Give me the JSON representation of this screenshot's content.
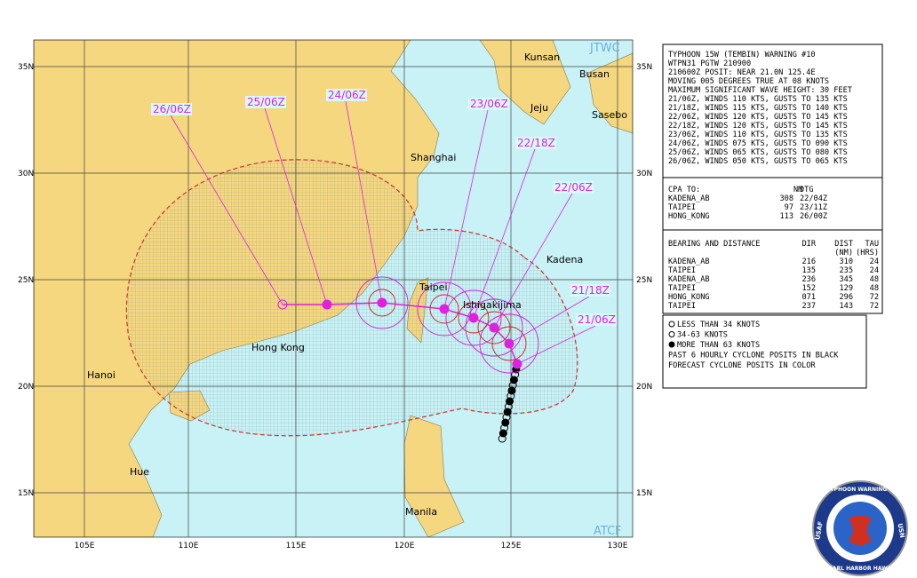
{
  "map": {
    "places": [
      "Kunsan",
      "Busan",
      "Jeju",
      "Sasebo",
      "Shanghai",
      "Kadena",
      "Taipei",
      "Ishigakijima",
      "Hong Kong",
      "Hanoi",
      "Hue",
      "Manila"
    ],
    "lat_ticks": [
      "35N",
      "30N",
      "25N",
      "20N",
      "15N"
    ],
    "lon_ticks": [
      "105E",
      "110E",
      "115E",
      "120E",
      "125E",
      "130E"
    ],
    "track_labels": [
      "21/06Z",
      "21/18Z",
      "22/06Z",
      "22/18Z",
      "23/06Z",
      "24/06Z",
      "25/06Z",
      "26/06Z"
    ],
    "brand_top": "JTWC",
    "brand_bottom": "ATCF"
  },
  "warning": {
    "lines": [
      "TYPHOON 15W (TEMBIN) WARNING #10",
      "WTPN31 PGTW 210900",
      "210600Z POSIT: NEAR 21.0N 125.4E",
      "MOVING 005 DEGREES TRUE AT 08 KNOTS",
      "MAXIMUM SIGNIFICANT WAVE HEIGHT: 30 FEET",
      "21/06Z, WINDS 110 KTS, GUSTS TO 135 KTS",
      "21/18Z, WINDS 115 KTS, GUSTS TO 140 KTS",
      "22/06Z, WINDS 120 KTS, GUSTS TO 145 KTS",
      "22/18Z, WINDS 120 KTS, GUSTS TO 145 KTS",
      "23/06Z, WINDS 110 KTS, GUSTS TO 135 KTS",
      "24/06Z, WINDS 075 KTS, GUSTS TO 090 KTS",
      "25/06Z, WINDS 065 KTS, GUSTS TO 080 KTS",
      "26/06Z, WINDS 050 KTS, GUSTS TO 065 KTS"
    ],
    "cpa_header": [
      "CPA TO:",
      "NM",
      "DTG"
    ],
    "cpa_rows": [
      [
        "KADENA_AB",
        "308",
        "22/04Z"
      ],
      [
        "TAIPEI",
        "97",
        "23/11Z"
      ],
      [
        "HONG_KONG",
        "113",
        "26/00Z"
      ]
    ],
    "bearing_header": [
      "BEARING AND DISTANCE",
      "DIR",
      "DIST",
      "TAU"
    ],
    "bearing_units": [
      "(NM)",
      "(HRS)"
    ],
    "bearing_rows": [
      [
        "KADENA_AB",
        "216",
        "310",
        "24"
      ],
      [
        "TAIPEI",
        "135",
        "235",
        "24"
      ],
      [
        "KADENA_AB",
        "236",
        "345",
        "48"
      ],
      [
        "TAIPEI",
        "152",
        "129",
        "48"
      ],
      [
        "HONG_KONG",
        "071",
        "296",
        "72"
      ],
      [
        "TAIPEI",
        "237",
        "143",
        "72"
      ]
    ]
  },
  "legend": [
    "LESS THAN 34 KNOTS",
    "34-63 KNOTS",
    "MORE THAN 63 KNOTS",
    "PAST 6 HOURLY CYCLONE POSITS IN BLACK",
    "FORECAST CYCLONE POSITS IN COLOR"
  ],
  "seal": {
    "top": "JOINT TYPHOON WARNING CENTER",
    "bottom": "PEARL HARBOR HAWAII",
    "left": "USAF",
    "right": "USN"
  }
}
